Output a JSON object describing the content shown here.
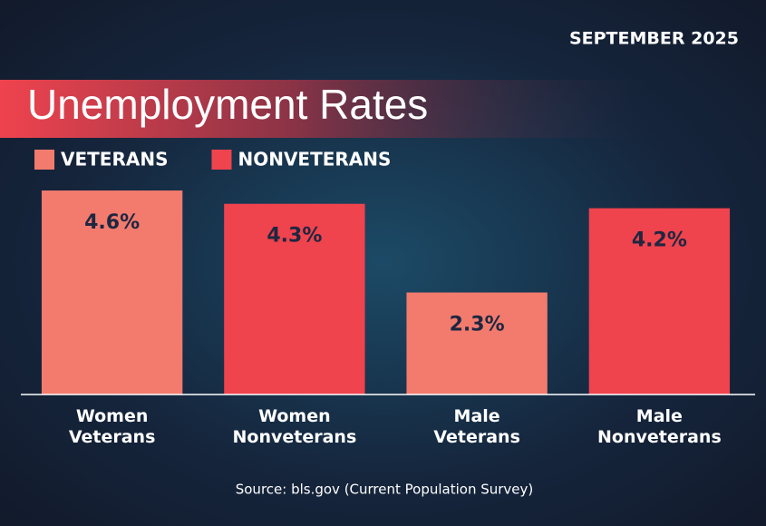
{
  "chart_data": {
    "type": "bar",
    "date": "SEPTEMBER 2025",
    "title": "Unemployment Rates",
    "categories": [
      "Women Veterans",
      "Women Nonveterans",
      "Male Veterans",
      "Male Nonveterans"
    ],
    "series": [
      {
        "name": "VETERANS",
        "color": "#f27b6e",
        "values": [
          4.6,
          null,
          2.3,
          null
        ],
        "value_labels": [
          "4.6%",
          null,
          "2.3%",
          null
        ]
      },
      {
        "name": "NONVETERANS",
        "color": "#ef434e",
        "values": [
          null,
          4.3,
          null,
          4.2
        ],
        "value_labels": [
          null,
          "4.3%",
          null,
          "4.2%"
        ]
      }
    ],
    "ylim": [
      0,
      5
    ],
    "source": "Source: bls.gov (Current Population Survey)"
  }
}
